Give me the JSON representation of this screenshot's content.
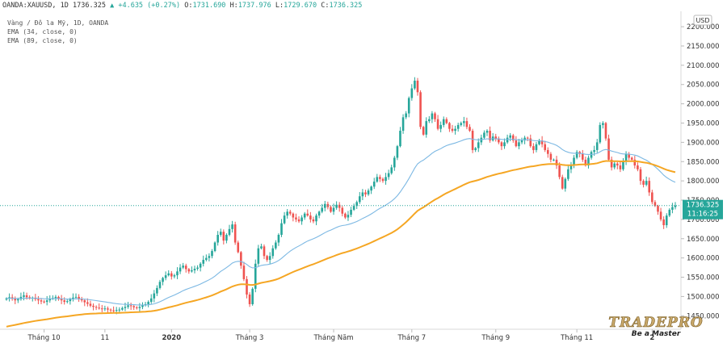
{
  "header": {
    "symbol": "OANDA:XAUUSD, 1D",
    "last": "1736.325",
    "change": "+4.635 (+0.27%)",
    "o_label": "O:",
    "o": "1731.690",
    "h_label": "H:",
    "h": "1737.976",
    "l_label": "L:",
    "l": "1729.670",
    "c_label": "C:",
    "c": "1736.325"
  },
  "indicators": [
    "Vàng / Đô la Mỹ, 1D, OANDA",
    "EMA (34, close, 0)",
    "EMA (89, close, 0)"
  ],
  "currency_label": "USD",
  "price_tag": {
    "price": "1736.325",
    "countdown": "11:16:25"
  },
  "logo": {
    "brand": "TRADEPRO",
    "tagline": "Be a Master"
  },
  "colors": {
    "up": "#26a69a",
    "down": "#ef5350",
    "ema34": "#7cb8e3",
    "ema89": "#f5a623",
    "last_line": "#26a69a"
  },
  "chart_data": {
    "type": "line",
    "title": "Vàng / Đô la Mỹ, 1D, OANDA",
    "y_axis": {
      "ticks": [
        1450,
        1500,
        1550,
        1600,
        1650,
        1700,
        1750,
        1800,
        1850,
        1900,
        1950,
        2000,
        2050,
        2100,
        2150,
        2200
      ],
      "tick_labels": [
        "1450.000",
        "1500.000",
        "1550.000",
        "1600.000",
        "1650.000",
        "1700.000",
        "1750.000",
        "1800.000",
        "1850.000",
        "1900.000",
        "1950.000",
        "2000.000",
        "2050.000",
        "2100.000",
        "2150.000",
        "2200.000"
      ],
      "range": [
        1415,
        2240
      ]
    },
    "x_axis": {
      "labels": [
        "Tháng 10",
        "11",
        "2020",
        "Tháng 3",
        "Tháng Năm",
        "Tháng 7",
        "Tháng 9",
        "Tháng 11",
        "2"
      ],
      "label_index": [
        13,
        34,
        57,
        84,
        113,
        140,
        169,
        197,
        223
      ]
    },
    "grid": false,
    "series": [
      {
        "name": "Vàng / Đô la Mỹ, 1D, OANDA",
        "close": [
          1495,
          1498,
          1494,
          1490,
          1493,
          1499,
          1503,
          1498,
          1495,
          1497,
          1493,
          1490,
          1487,
          1486,
          1490,
          1494,
          1496,
          1499,
          1494,
          1490,
          1486,
          1488,
          1493,
          1497,
          1499,
          1494,
          1490,
          1485,
          1481,
          1476,
          1473,
          1471,
          1469,
          1467,
          1469,
          1466,
          1464,
          1463,
          1465,
          1466,
          1470,
          1473,
          1477,
          1475,
          1472,
          1470,
          1473,
          1477,
          1480,
          1486,
          1495,
          1508,
          1522,
          1538,
          1548,
          1555,
          1560,
          1552,
          1555,
          1565,
          1575,
          1580,
          1571,
          1565,
          1568,
          1572,
          1575,
          1585,
          1595,
          1600,
          1605,
          1618,
          1640,
          1660,
          1668,
          1645,
          1660,
          1675,
          1687,
          1640,
          1615,
          1580,
          1545,
          1505,
          1480,
          1520,
          1585,
          1625,
          1630,
          1605,
          1595,
          1605,
          1625,
          1640,
          1660,
          1690,
          1710,
          1720,
          1715,
          1705,
          1700,
          1695,
          1705,
          1715,
          1710,
          1700,
          1695,
          1710,
          1720,
          1730,
          1740,
          1732,
          1720,
          1730,
          1738,
          1730,
          1715,
          1705,
          1712,
          1725,
          1735,
          1745,
          1760,
          1770,
          1765,
          1775,
          1785,
          1798,
          1810,
          1805,
          1800,
          1810,
          1820,
          1835,
          1860,
          1890,
          1930,
          1965,
          1975,
          2015,
          2040,
          2060,
          2030,
          1940,
          1920,
          1955,
          1960,
          1975,
          1960,
          1935,
          1945,
          1960,
          1950,
          1935,
          1930,
          1935,
          1945,
          1950,
          1955,
          1940,
          1930,
          1880,
          1885,
          1900,
          1912,
          1925,
          1930,
          1905,
          1915,
          1910,
          1900,
          1890,
          1900,
          1912,
          1918,
          1905,
          1890,
          1900,
          1905,
          1912,
          1910,
          1890,
          1880,
          1895,
          1905,
          1895,
          1880,
          1870,
          1855,
          1855,
          1840,
          1810,
          1780,
          1805,
          1830,
          1840,
          1860,
          1875,
          1870,
          1855,
          1840,
          1860,
          1875,
          1880,
          1900,
          1945,
          1950,
          1910,
          1855,
          1835,
          1845,
          1840,
          1830,
          1850,
          1870,
          1860,
          1855,
          1840,
          1830,
          1800,
          1790,
          1800,
          1770,
          1745,
          1735,
          1720,
          1700,
          1685,
          1710,
          1725,
          1732,
          1736
        ]
      },
      {
        "name": "EMA (34, close, 0)"
      },
      {
        "name": "EMA (89, close, 0)"
      }
    ]
  }
}
